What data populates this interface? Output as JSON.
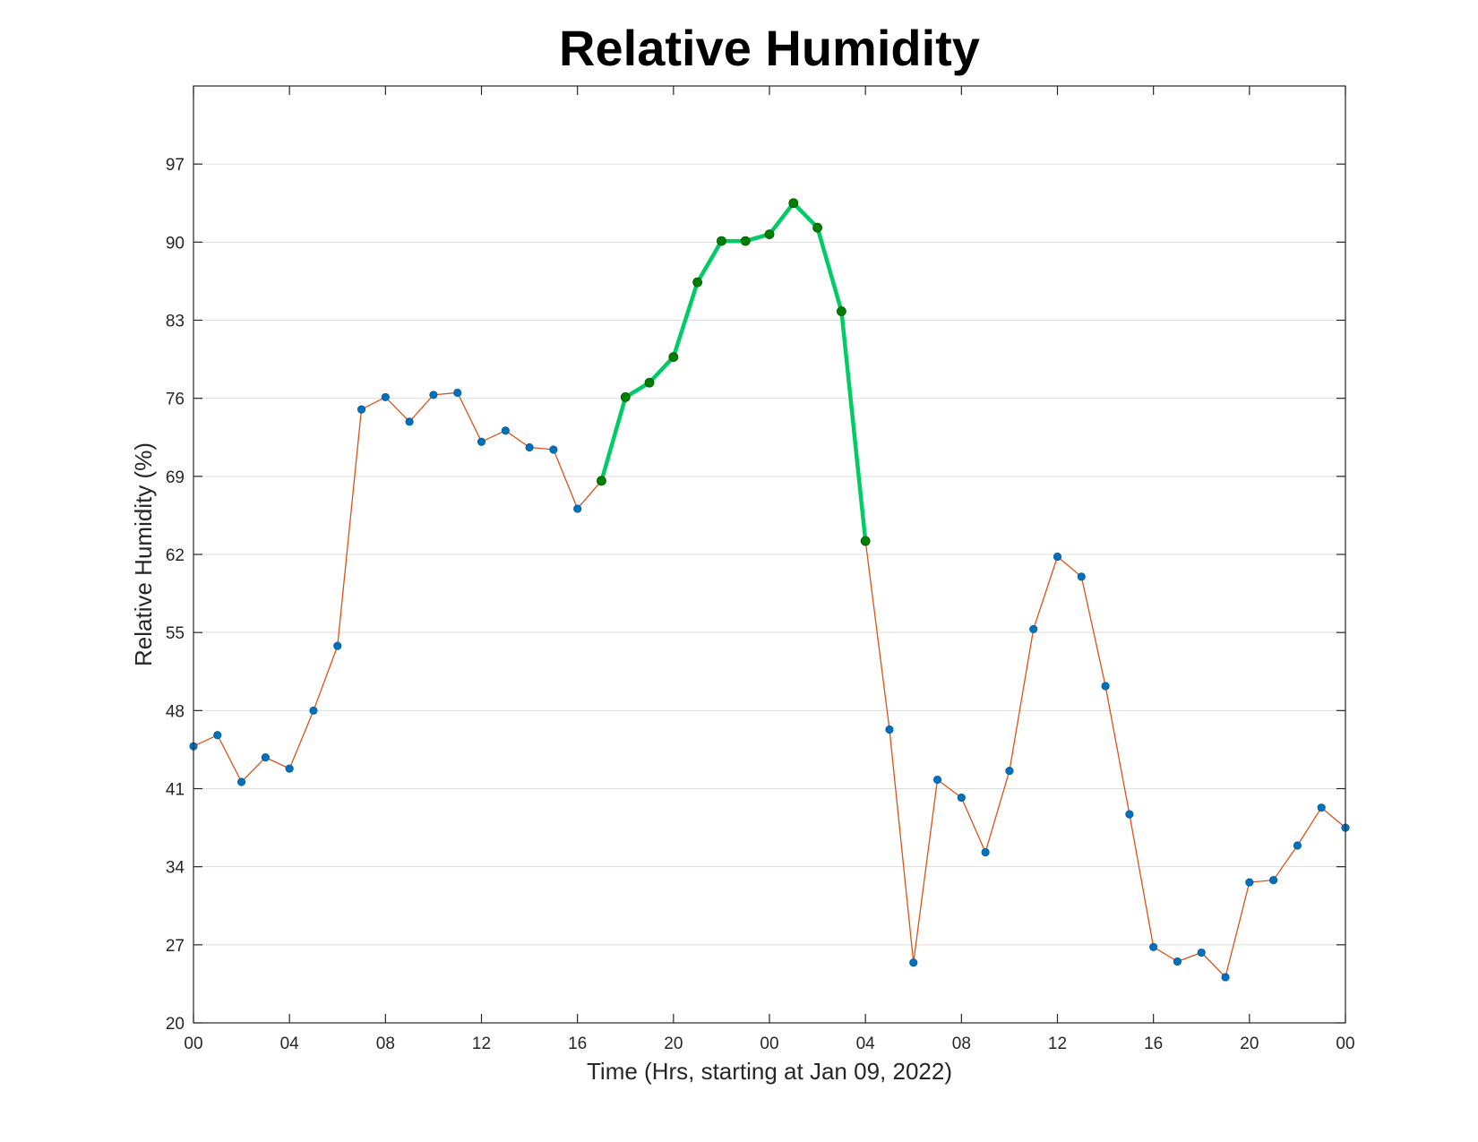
{
  "chart_data": {
    "type": "line",
    "title": "Relative Humidity",
    "xlabel": "Time (Hrs, starting at Jan 09, 2022)",
    "ylabel": "Relative Humidity (%)",
    "xlim": [
      0,
      48
    ],
    "ylim": [
      20,
      104
    ],
    "grid": "y-major",
    "x_ticks": [
      0,
      4,
      8,
      12,
      16,
      20,
      24,
      28,
      32,
      36,
      40,
      44,
      48
    ],
    "x_tick_labels": [
      "00",
      "04",
      "08",
      "12",
      "16",
      "20",
      "00",
      "04",
      "08",
      "12",
      "16",
      "20",
      "00"
    ],
    "y_ticks": [
      20,
      27,
      34,
      41,
      48,
      55,
      62,
      69,
      76,
      83,
      90,
      97
    ],
    "y_tick_labels": [
      "20",
      "27",
      "34",
      "41",
      "48",
      "55",
      "62",
      "69",
      "76",
      "83",
      "90",
      "97"
    ],
    "series": [
      {
        "style": "thin",
        "color": "#d95319",
        "marker_color": "#0072bd",
        "x": [
          0,
          1,
          2,
          3,
          4,
          5,
          6,
          7,
          8,
          9,
          10,
          11,
          12,
          13,
          14,
          15,
          16,
          17,
          18,
          19,
          20,
          21,
          22,
          23,
          24,
          25,
          26,
          27,
          28,
          29,
          30,
          31,
          32,
          33,
          34,
          35,
          36,
          37,
          38,
          39,
          40,
          41,
          42,
          43,
          44,
          45,
          46,
          47,
          48
        ],
        "values": [
          44.8,
          45.8,
          41.6,
          43.8,
          42.8,
          48.0,
          53.8,
          75.0,
          76.1,
          73.9,
          76.3,
          76.5,
          72.1,
          73.1,
          71.6,
          71.4,
          66.1,
          68.6,
          76.1,
          77.4,
          79.7,
          86.4,
          90.1,
          90.1,
          90.7,
          93.5,
          91.3,
          83.8,
          63.2,
          46.3,
          25.4,
          41.8,
          40.2,
          35.3,
          42.6,
          55.3,
          61.8,
          60.0,
          50.2,
          38.7,
          26.8,
          25.5,
          26.3,
          24.1,
          32.6,
          32.8,
          35.9,
          39.3,
          37.5
        ]
      },
      {
        "style": "highlight",
        "color": "#00cc66",
        "marker_color": "#008000",
        "x": [
          17,
          18,
          19,
          20,
          21,
          22,
          23,
          24,
          25,
          26,
          27,
          28
        ],
        "values": [
          68.6,
          76.1,
          77.4,
          79.7,
          86.4,
          90.1,
          90.1,
          90.7,
          93.5,
          91.3,
          83.8,
          63.2
        ]
      }
    ]
  }
}
